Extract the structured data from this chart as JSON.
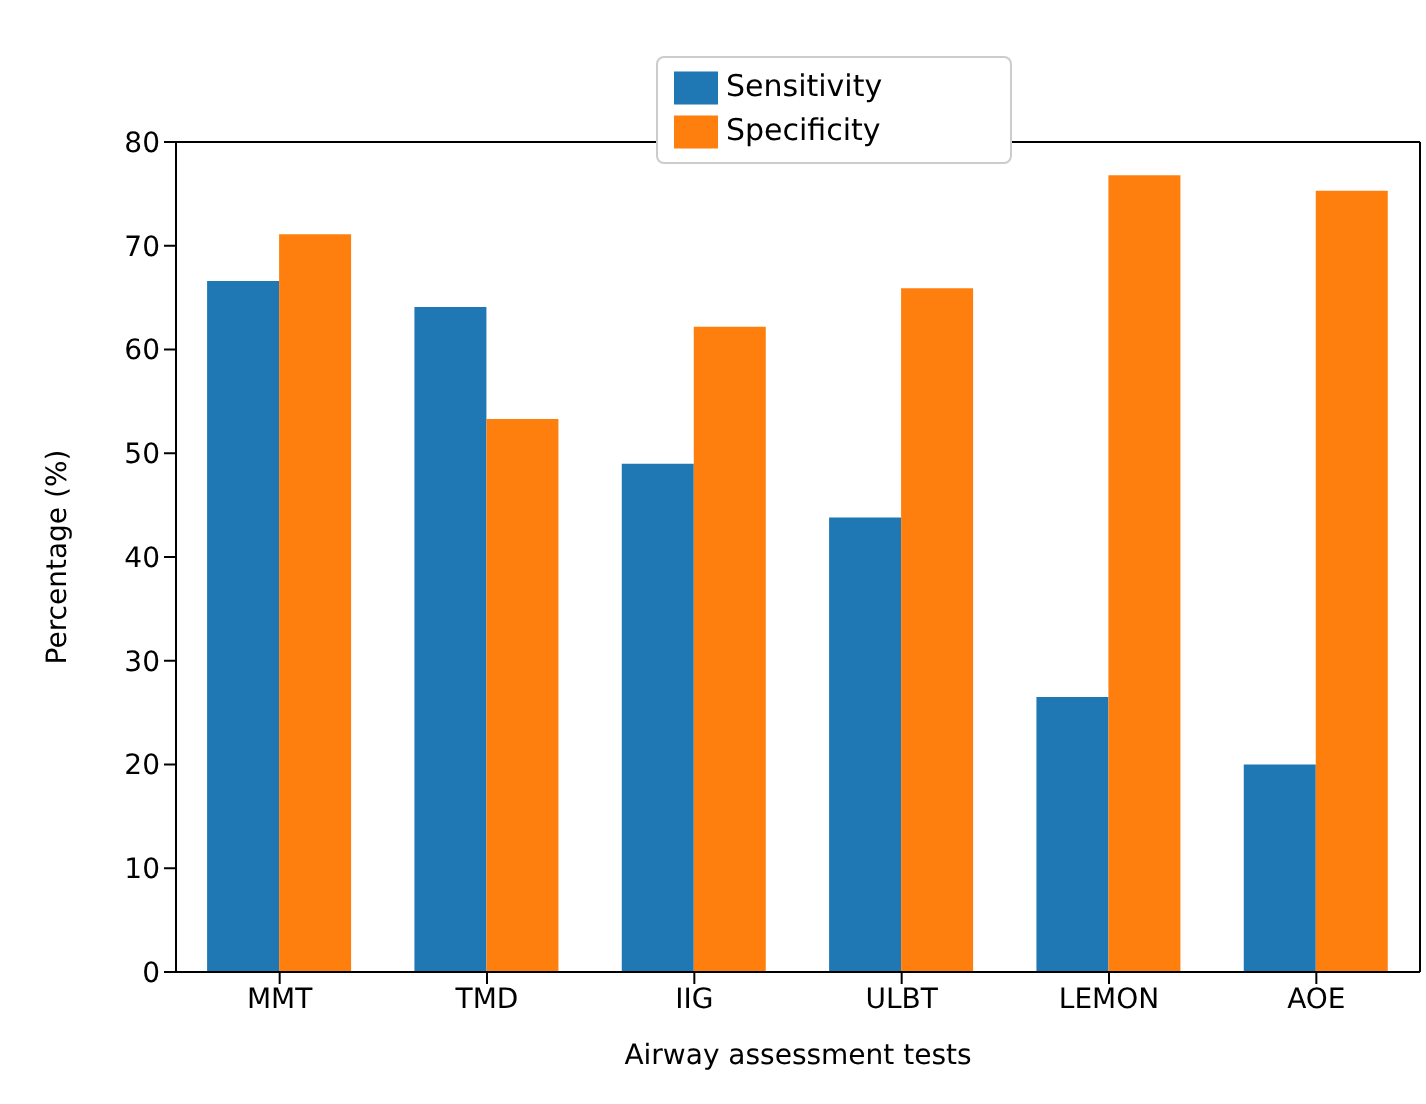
{
  "chart_data": {
    "type": "bar",
    "xlabel": "Airway assessment tests",
    "ylabel": "Percentage (%)",
    "categories": [
      "MMT",
      "TMD",
      "IIG",
      "ULBT",
      "LEMON",
      "AOE"
    ],
    "series": [
      {
        "name": "Sensitivity",
        "color": "#1f77b4",
        "values": [
          66.6,
          64.1,
          49.0,
          43.8,
          26.5,
          20.0
        ]
      },
      {
        "name": "Specificity",
        "color": "#ff7f0e",
        "values": [
          71.1,
          53.3,
          62.2,
          65.9,
          76.8,
          75.3
        ]
      }
    ],
    "ylim": [
      0,
      80
    ],
    "yticks": [
      0,
      10,
      20,
      30,
      40,
      50,
      60,
      70,
      80
    ],
    "grid": false,
    "legend": "top"
  }
}
